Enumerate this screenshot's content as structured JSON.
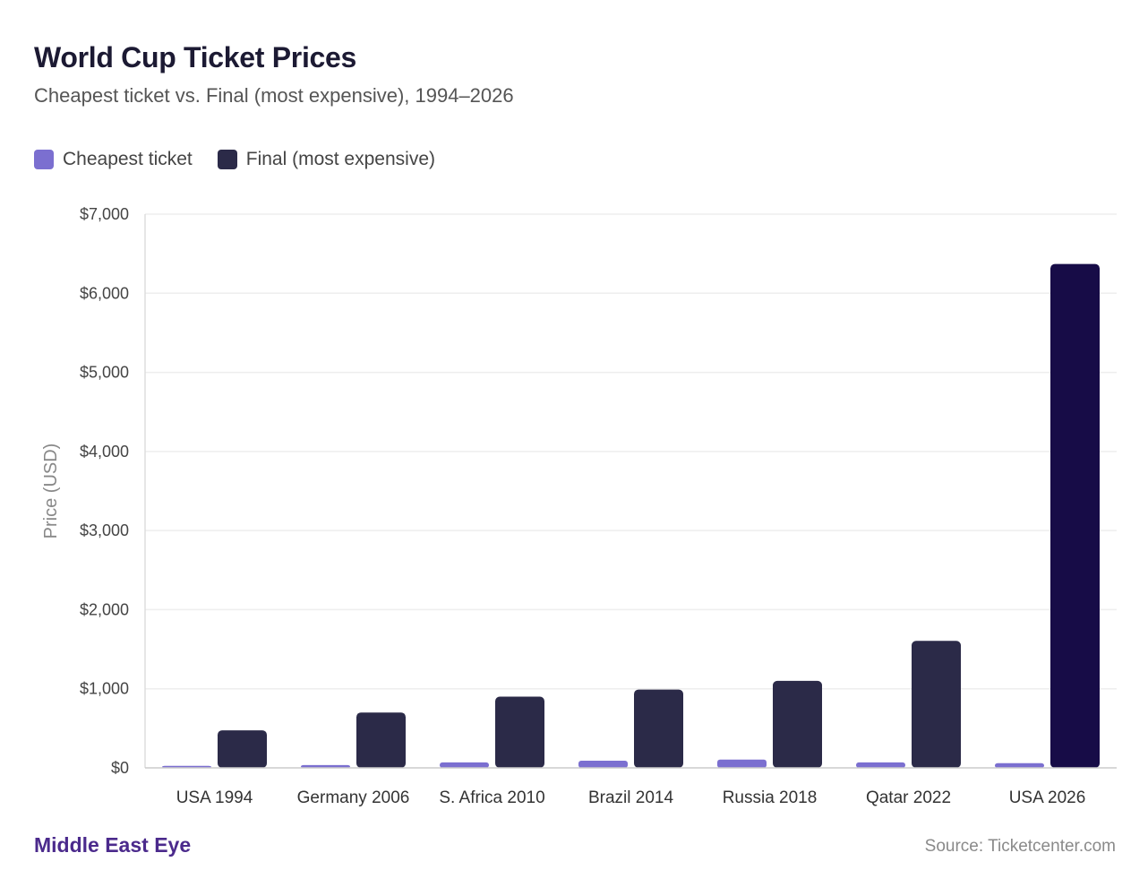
{
  "header": {
    "title": "World Cup Ticket Prices",
    "subtitle": "Cheapest ticket vs. Final (most expensive), 1994–2026"
  },
  "footer": {
    "brand": "Middle East Eye",
    "source": "Source: Ticketcenter.com"
  },
  "colors": {
    "cheapest": "#7b6fd0",
    "final": "#2b2a48",
    "final_highlight": "#170c47",
    "grid": "#eeeeee",
    "axis_text": "#444444"
  },
  "chart_data": {
    "type": "bar",
    "title": "World Cup Ticket Prices",
    "subtitle": "Cheapest ticket vs. Final (most expensive), 1994–2026",
    "xlabel": "",
    "ylabel": "Price (USD)",
    "ylim": [
      0,
      7000
    ],
    "yticks": [
      0,
      1000,
      2000,
      3000,
      4000,
      5000,
      6000,
      7000
    ],
    "ytick_labels": [
      "$0",
      "$1,000",
      "$2,000",
      "$3,000",
      "$4,000",
      "$5,000",
      "$6,000",
      "$7,000"
    ],
    "grid": true,
    "legend_position": "top-left",
    "categories": [
      "USA 1994",
      "Germany 2006",
      "S. Africa 2010",
      "Brazil 2014",
      "Russia 2018",
      "Qatar 2022",
      "USA 2026"
    ],
    "series": [
      {
        "name": "Cheapest ticket",
        "values": [
          25,
          35,
          70,
          90,
          105,
          70,
          60
        ]
      },
      {
        "name": "Final (most expensive)",
        "values": [
          475,
          700,
          900,
          990,
          1100,
          1605,
          6370
        ]
      }
    ]
  }
}
